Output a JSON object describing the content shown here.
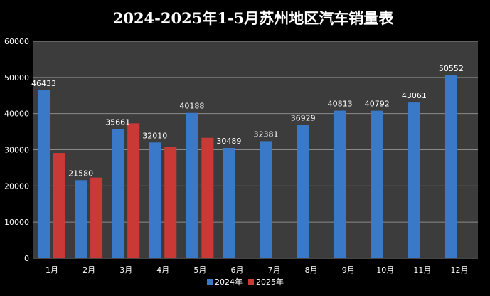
{
  "chart_data": {
    "type": "bar",
    "title": "2024-2025年1-5月苏州地区汽车销量表",
    "xlabel": "",
    "ylabel": "",
    "categories": [
      "1月",
      "2月",
      "3月",
      "4月",
      "5月",
      "6月",
      "7月",
      "8月",
      "9月",
      "10月",
      "11月",
      "12月"
    ],
    "series": [
      {
        "name": "2024年",
        "color": "#3a78c8",
        "values": [
          46433,
          21580,
          35661,
          32010,
          40188,
          30489,
          32381,
          36929,
          40813,
          40792,
          43061,
          50552
        ],
        "labels": [
          "46433",
          "21580",
          "35661",
          "32010",
          "40188",
          "30489",
          "32381",
          "36929",
          "40813",
          "40792",
          "43061",
          "50552"
        ]
      },
      {
        "name": "2025年",
        "color": "#c93a36",
        "values": [
          29100,
          22300,
          37300,
          30800,
          33300,
          null,
          null,
          null,
          null,
          null,
          null,
          null
        ],
        "labels": []
      }
    ],
    "ylim": [
      0,
      60000
    ],
    "yticks": [
      "0",
      "10000",
      "20000",
      "30000",
      "40000",
      "50000",
      "60000"
    ],
    "grid": true,
    "legend_position": "bottom"
  }
}
